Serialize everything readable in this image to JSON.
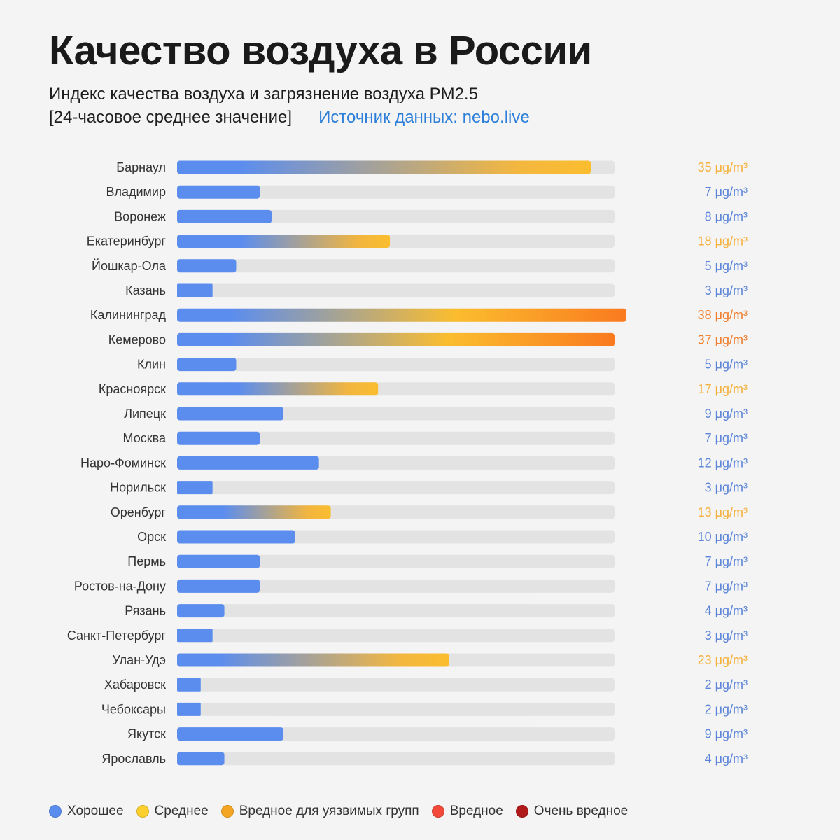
{
  "title": "Качество воздуха в России",
  "subtitle_line1": "Индекс качества воздуха и загрязнение воздуха PM2.5",
  "subtitle_line2": "[24-часовое среднее значение]",
  "source": "Источник данных: nebo.live",
  "colors": {
    "good": "#5b8def",
    "moderate": "#fbbd2e",
    "unhealthy_sensitive": "#f89a2a",
    "unhealthy": "#f2493a",
    "very_unhealthy": "#b01a1a",
    "track": "#e3e3e3"
  },
  "legend": [
    {
      "label": "Хорошее",
      "color": "#5b8def"
    },
    {
      "label": "Среднее",
      "color": "#fbd02e"
    },
    {
      "label": "Вредное для уязвимых групп",
      "color": "#f5a524"
    },
    {
      "label": "Вредное",
      "color": "#f2493a"
    },
    {
      "label": "Очень вредное",
      "color": "#b01a1a"
    }
  ],
  "chart_data": {
    "type": "bar",
    "orientation": "horizontal",
    "unit": "μg/m³",
    "xlim": [
      0,
      37
    ],
    "categories": [
      "Барнаул",
      "Владимир",
      "Воронеж",
      "Екатеринбург",
      "Йошкар-Ола",
      "Казань",
      "Калининград",
      "Кемерово",
      "Клин",
      "Красноярск",
      "Липецк",
      "Москва",
      "Наро-Фоминск",
      "Норильск",
      "Оренбург",
      "Орск",
      "Пермь",
      "Ростов-на-Дону",
      "Рязань",
      "Санкт-Петербург",
      "Улан-Удэ",
      "Хабаровск",
      "Чебоксары",
      "Якутск",
      "Ярославль"
    ],
    "values": [
      35,
      7,
      8,
      18,
      5,
      3,
      38,
      37,
      5,
      17,
      9,
      7,
      12,
      3,
      13,
      10,
      7,
      7,
      4,
      3,
      23,
      2,
      2,
      9,
      4
    ],
    "labels": [
      "35 μg/m³",
      "7 μg/m³",
      "8 μg/m³",
      "18 μg/m³",
      "5 μg/m³",
      "3 μg/m³",
      "38 μg/m³",
      "37 μg/m³",
      "5 μg/m³",
      "17 μg/m³",
      "9 μg/m³",
      "7 μg/m³",
      "12 μg/m³",
      "3 μg/m³",
      "13 μg/m³",
      "10 μg/m³",
      "7 μg/m³",
      "7 μg/m³",
      "4 μg/m³",
      "3 μg/m³",
      "23 μg/m³",
      "2 μg/m³",
      "2 μg/m³",
      "9 μg/m³",
      "4 μg/m³"
    ]
  }
}
